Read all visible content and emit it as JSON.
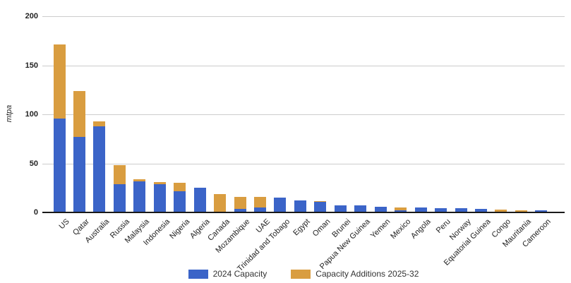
{
  "chart_data": {
    "type": "bar",
    "stacked": true,
    "title": "",
    "xlabel": "",
    "ylabel": "mtpa",
    "ylim": [
      0,
      200
    ],
    "yticks": [
      0,
      50,
      100,
      150,
      200
    ],
    "grid": true,
    "legend_position": "bottom-center",
    "categories": [
      "US",
      "Qatar",
      "Australia",
      "Russia",
      "Malaysia",
      "Indonesia",
      "Nigeria",
      "Algeria",
      "Canada",
      "Mozambique",
      "UAE",
      "Trinidad and Tobago",
      "Egypt",
      "Oman",
      "Brunei",
      "Papua New Guinea",
      "Yemen",
      "Mexico",
      "Angola",
      "Peru",
      "Norway",
      "Equatorial Guinea",
      "Congo",
      "Mauritania",
      "Cameroon"
    ],
    "series": [
      {
        "name": "2024 Capacity",
        "color": "#3b64c8",
        "values": [
          96,
          77,
          88,
          29,
          31.5,
          29,
          21.5,
          25,
          0,
          3.5,
          5,
          15,
          12,
          10.5,
          7,
          6.9,
          6,
          2,
          5,
          4.5,
          4.2,
          3.4,
          0,
          0,
          2
        ]
      },
      {
        "name": "Capacity Additions 2025-32",
        "color": "#d99d40",
        "values": [
          75,
          47,
          5,
          19.5,
          2,
          2,
          8.5,
          0,
          19,
          12.5,
          10.5,
          0,
          0,
          1,
          0,
          0,
          0,
          3.4,
          0,
          0,
          0,
          0,
          3,
          2.4,
          0
        ]
      }
    ],
    "gridline_color": "#cccccc",
    "axis_color": "#1a1a1a",
    "background_color": "#ffffff"
  }
}
